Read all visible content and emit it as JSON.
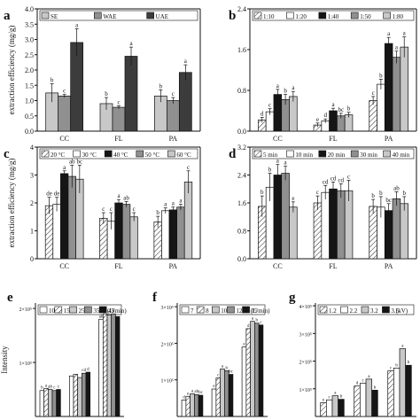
{
  "panel_labels": [
    "a",
    "b",
    "c",
    "d",
    "e",
    "f",
    "g"
  ],
  "patterns": {
    "white": "#ffffff",
    "light_gray": "#c8c8c8",
    "mid_gray": "#909090",
    "dark": "#3c3c3c",
    "black": "#151515",
    "hatch": "diagonal-hatch"
  },
  "chart_data": [
    {
      "id": "a",
      "type": "bar",
      "ylabel": "extraction efficiency (mg/g)",
      "categories": [
        "CC",
        "FL",
        "PA"
      ],
      "ylim": [
        0,
        4.0
      ],
      "yticks": [
        "0.0",
        "0.5",
        "1.0",
        "1.5",
        "2.0",
        "2.5",
        "3.0",
        "3.5",
        "4.0"
      ],
      "grouped": true,
      "series": [
        {
          "name": "SE",
          "fill": "light_gray",
          "values": [
            1.25,
            0.9,
            1.15
          ],
          "errors": [
            0.3,
            0.2,
            0.2
          ],
          "letters": [
            "b",
            "b",
            "b"
          ]
        },
        {
          "name": "WAE",
          "fill": "mid_gray",
          "values": [
            1.15,
            0.78,
            1.0
          ],
          "errors": [
            0.05,
            0.05,
            0.1
          ],
          "letters": [
            "c",
            "c",
            "c"
          ]
        },
        {
          "name": "UAE",
          "fill": "dark",
          "values": [
            2.9,
            2.45,
            1.92
          ],
          "errors": [
            0.45,
            0.3,
            0.25
          ],
          "letters": [
            "a",
            "a",
            "a"
          ]
        }
      ]
    },
    {
      "id": "b",
      "type": "bar",
      "ylabel": "",
      "categories": [
        "CC",
        "FL",
        "PA"
      ],
      "ylim": [
        0,
        2.4
      ],
      "yticks": [
        "0.0",
        "0.8",
        "1.6",
        "2.4"
      ],
      "grouped": true,
      "series": [
        {
          "name": "1:10",
          "fill": "hatch",
          "values": [
            0.22,
            0.12,
            0.6
          ],
          "errors": [
            0.05,
            0.04,
            0.08
          ],
          "letters": [
            "d",
            "e",
            "c"
          ]
        },
        {
          "name": "1:20",
          "fill": "white",
          "values": [
            0.38,
            0.2,
            0.92
          ],
          "errors": [
            0.06,
            0.04,
            0.1
          ],
          "letters": [
            "c",
            "d",
            "b"
          ]
        },
        {
          "name": "1:40",
          "fill": "black",
          "values": [
            0.72,
            0.4,
            1.72
          ],
          "errors": [
            0.1,
            0.05,
            0.12
          ],
          "letters": [
            "a",
            "a",
            "a"
          ]
        },
        {
          "name": "1:50",
          "fill": "mid_gray",
          "values": [
            0.62,
            0.3,
            1.45
          ],
          "errors": [
            0.1,
            0.05,
            0.12
          ],
          "letters": [
            "b",
            "bc",
            "a"
          ]
        },
        {
          "name": "1:80",
          "fill": "light_gray",
          "values": [
            0.68,
            0.32,
            1.65
          ],
          "errors": [
            0.1,
            0.05,
            0.2
          ],
          "letters": [
            "a",
            "b",
            "a"
          ]
        }
      ]
    },
    {
      "id": "c",
      "type": "bar",
      "ylabel": "extraction efficiency (mg/g)",
      "categories": [
        "CC",
        "FL",
        "PA"
      ],
      "ylim": [
        0,
        4.0
      ],
      "yticks": [
        "0",
        "1",
        "2",
        "3",
        "4"
      ],
      "grouped": true,
      "series": [
        {
          "name": "20 °C",
          "fill": "hatch",
          "values": [
            1.9,
            1.45,
            1.32
          ],
          "errors": [
            0.3,
            0.2,
            0.2
          ],
          "letters": [
            "de",
            "c",
            "b"
          ]
        },
        {
          "name": "30 °C",
          "fill": "white",
          "values": [
            1.95,
            1.35,
            1.72
          ],
          "errors": [
            0.25,
            0.3,
            0.1
          ],
          "letters": [
            "de",
            "c",
            "a"
          ]
        },
        {
          "name": "40 °C",
          "fill": "black",
          "values": [
            3.05,
            2.0,
            1.75
          ],
          "errors": [
            0.1,
            0.12,
            0.1
          ],
          "letters": [
            "a",
            "a",
            "a"
          ]
        },
        {
          "name": "50 °C",
          "fill": "mid_gray",
          "values": [
            2.95,
            1.95,
            1.85
          ],
          "errors": [
            0.4,
            0.1,
            0.1
          ],
          "letters": [
            "ab",
            "ab",
            "a"
          ]
        },
        {
          "name": "60 °C",
          "fill": "light_gray",
          "values": [
            2.85,
            1.5,
            2.75
          ],
          "errors": [
            0.5,
            0.15,
            0.4
          ],
          "letters": [
            "bc",
            "c",
            "c"
          ]
        }
      ]
    },
    {
      "id": "d",
      "type": "bar",
      "ylabel": "",
      "categories": [
        "CC",
        "FL",
        "PA"
      ],
      "ylim": [
        0,
        3.2
      ],
      "yticks": [
        "0.0",
        "0.8",
        "1.6",
        "2.4",
        "3.2"
      ],
      "grouped": true,
      "series": [
        {
          "name": "5 min",
          "fill": "hatch",
          "values": [
            1.5,
            1.6,
            1.5
          ],
          "errors": [
            0.3,
            0.2,
            0.2
          ],
          "letters": [
            "b",
            "c",
            "b"
          ]
        },
        {
          "name": "10 min",
          "fill": "white",
          "values": [
            2.05,
            1.9,
            1.48
          ],
          "errors": [
            0.4,
            0.2,
            0.3
          ],
          "letters": [
            "b",
            "cd",
            "b"
          ]
        },
        {
          "name": "20 min",
          "fill": "black",
          "values": [
            2.4,
            2.0,
            1.38
          ],
          "errors": [
            0.3,
            0.2,
            0.2
          ],
          "letters": [
            "a",
            "cd",
            "bc"
          ]
        },
        {
          "name": "30 min",
          "fill": "mid_gray",
          "values": [
            2.45,
            1.95,
            1.72
          ],
          "errors": [
            0.2,
            0.2,
            0.2
          ],
          "letters": [
            "a",
            "cd",
            "ab"
          ]
        },
        {
          "name": "40 min",
          "fill": "light_gray",
          "values": [
            1.48,
            1.95,
            1.58
          ],
          "errors": [
            0.15,
            0.3,
            0.2
          ],
          "letters": [
            "e",
            "c",
            "b"
          ]
        }
      ]
    },
    {
      "id": "e",
      "type": "bar",
      "ylabel": "Intensity",
      "legend_unit": "(L/min)",
      "ylim": [
        0,
        2.1
      ],
      "yticks": [
        "1×10⁵",
        "2×10⁵"
      ],
      "ytick_values": [
        1,
        2
      ],
      "grouped": true,
      "series": [
        {
          "name": "10",
          "fill": "white",
          "values": [
            0.48,
            0.75,
            1.8
          ],
          "letters": [
            "b",
            "",
            "ab"
          ]
        },
        {
          "name": "15",
          "fill": "hatch",
          "values": [
            0.52,
            0.78,
            1.9
          ],
          "letters": [
            "a",
            "",
            "b"
          ]
        },
        {
          "name": "25",
          "fill": "light_gray",
          "values": [
            0.5,
            0.72,
            1.88
          ],
          "letters": [
            "ab",
            "",
            "c"
          ]
        },
        {
          "name": "35",
          "fill": "mid_gray",
          "values": [
            0.48,
            0.8,
            1.9
          ],
          "letters": [
            "c",
            "cd",
            "d"
          ]
        },
        {
          "name": "45",
          "fill": "black",
          "values": [
            0.5,
            0.82,
            1.85
          ],
          "letters": [
            "c",
            "d",
            ""
          ]
        }
      ]
    },
    {
      "id": "f",
      "type": "bar",
      "ylabel": "",
      "legend_unit": "(L/min)",
      "ylim": [
        0,
        3.1
      ],
      "yticks": [
        "1×10⁵",
        "2×10⁵",
        "3×10⁵"
      ],
      "ytick_values": [
        1,
        2,
        3
      ],
      "grouped": true,
      "series": [
        {
          "name": "7",
          "fill": "white",
          "values": [
            0.45,
            0.75,
            1.9
          ],
          "letters": [
            "d",
            "e",
            "e"
          ]
        },
        {
          "name": "8",
          "fill": "hatch",
          "values": [
            0.55,
            1.05,
            2.4
          ],
          "letters": [
            "e",
            "c",
            "d"
          ]
        },
        {
          "name": "10",
          "fill": "light_gray",
          "values": [
            0.62,
            1.3,
            2.6
          ],
          "letters": [
            "a",
            "a",
            "a"
          ]
        },
        {
          "name": "12",
          "fill": "mid_gray",
          "values": [
            0.6,
            1.25,
            2.55
          ],
          "letters": [
            "ab",
            "b",
            "b"
          ]
        },
        {
          "name": "15",
          "fill": "black",
          "values": [
            0.58,
            1.15,
            2.5
          ],
          "letters": [
            "bc",
            "bc",
            "c"
          ]
        }
      ]
    },
    {
      "id": "g",
      "type": "bar",
      "ylabel": "",
      "legend_unit": "(kV)",
      "ylim": [
        0,
        4.1
      ],
      "yticks": [
        "1×10⁵",
        "2×10⁵",
        "3×10⁵",
        "4×10⁵"
      ],
      "ytick_values": [
        1,
        2,
        3,
        4
      ],
      "grouped": true,
      "series": [
        {
          "name": "1.2",
          "fill": "hatch",
          "values": [
            0.5,
            1.1,
            1.65
          ],
          "letters": [
            "e",
            "d",
            "c"
          ]
        },
        {
          "name": "2.2",
          "fill": "white",
          "values": [
            0.6,
            1.2,
            1.75
          ],
          "letters": [
            "c",
            "c",
            "b"
          ]
        },
        {
          "name": "3.2",
          "fill": "light_gray",
          "values": [
            0.75,
            1.35,
            2.45
          ],
          "letters": [
            "a",
            "a",
            "a"
          ]
        },
        {
          "name": "3.5",
          "fill": "black",
          "values": [
            0.62,
            0.95,
            1.85
          ],
          "letters": [
            "b",
            "b",
            "b"
          ]
        }
      ]
    }
  ]
}
